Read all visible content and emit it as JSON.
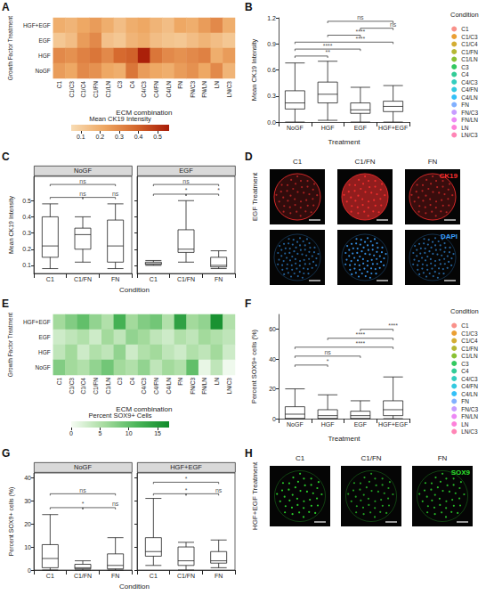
{
  "chart_data": [
    {
      "panel": "A",
      "type": "heatmap",
      "x_label": "ECM combination",
      "y_label": "Growth Factor Treatment",
      "columns": [
        "C1",
        "C1/C3",
        "C1/C4",
        "C1/FN",
        "C1/LN",
        "C3",
        "C4",
        "C4/C3",
        "C4/FN",
        "C4/LN",
        "FN",
        "FN/C3",
        "FN/LN",
        "LN",
        "LN/C3"
      ],
      "rows": [
        "HGF+EGF",
        "EGF",
        "HGF",
        "NoGF"
      ],
      "values": [
        [
          0.2,
          0.18,
          0.22,
          0.25,
          0.2,
          0.15,
          0.2,
          0.22,
          0.18,
          0.15,
          0.22,
          0.2,
          0.25,
          0.3,
          0.2
        ],
        [
          0.12,
          0.15,
          0.25,
          0.3,
          0.14,
          0.12,
          0.18,
          0.2,
          0.15,
          0.13,
          0.12,
          0.15,
          0.18,
          0.15,
          0.12
        ],
        [
          0.3,
          0.28,
          0.32,
          0.35,
          0.3,
          0.38,
          0.4,
          0.55,
          0.35,
          0.3,
          0.28,
          0.3,
          0.32,
          0.2,
          0.25
        ],
        [
          0.25,
          0.22,
          0.3,
          0.28,
          0.22,
          0.2,
          0.35,
          0.25,
          0.22,
          0.2,
          0.25,
          0.28,
          0.22,
          0.3,
          0.18
        ]
      ],
      "color_label": "Mean CK19 Intensity",
      "color_range": [
        0.05,
        0.56
      ],
      "color_ticks": [
        0.1,
        0.2,
        0.3,
        0.4,
        0.5
      ]
    },
    {
      "panel": "B",
      "type": "boxplot",
      "x_label": "Treatment",
      "y_label": "Mean CK19 Intensity",
      "categories": [
        "NoGF",
        "HGF",
        "EGF",
        "HGF+EGF"
      ],
      "boxes": [
        [
          0.0,
          0.15,
          0.22,
          0.36,
          0.68
        ],
        [
          0.02,
          0.22,
          0.32,
          0.46,
          0.7
        ],
        [
          0.0,
          0.1,
          0.14,
          0.22,
          0.4
        ],
        [
          0.0,
          0.12,
          0.18,
          0.24,
          0.42
        ]
      ],
      "ylim": [
        0,
        1.2
      ],
      "yticks": [
        {
          "value": 0,
          "label": "0.0"
        },
        0.3,
        0.6,
        0.9,
        1.2
      ],
      "grid": false,
      "comparisons": [
        {
          "from": "NoGF",
          "to": "HGF",
          "y": 0.76,
          "label": "**"
        },
        {
          "from": "NoGF",
          "to": "EGF",
          "y": 0.84,
          "label": "****"
        },
        {
          "from": "NoGF",
          "to": "HGF+EGF",
          "y": 0.92,
          "label": "****"
        },
        {
          "from": "HGF",
          "to": "EGF",
          "y": 1.0,
          "label": "****"
        },
        {
          "from": "EGF",
          "to": "HGF+EGF",
          "y": 1.08,
          "label": "ns"
        },
        {
          "from": "HGF",
          "to": "HGF+EGF",
          "y": 1.16,
          "label": "ns"
        }
      ],
      "legend": "right",
      "legend_title": "Condition",
      "series": [
        {
          "name": "C1",
          "color": "#F8766D"
        },
        {
          "name": "C1/C3",
          "color": "#E58700"
        },
        {
          "name": "C1/C4",
          "color": "#C99800"
        },
        {
          "name": "C1/FN",
          "color": "#A3A500"
        },
        {
          "name": "C1/LN",
          "color": "#6BB100"
        },
        {
          "name": "C3",
          "color": "#00BA38"
        },
        {
          "name": "C4",
          "color": "#00BF7D"
        },
        {
          "name": "C4/C3",
          "color": "#00C0AF"
        },
        {
          "name": "C4/FN",
          "color": "#00BCD8"
        },
        {
          "name": "C4/LN",
          "color": "#00B0F6"
        },
        {
          "name": "FN",
          "color": "#619CFF"
        },
        {
          "name": "FN/C3",
          "color": "#B983FF"
        },
        {
          "name": "FN/LN",
          "color": "#E76BF3"
        },
        {
          "name": "LN",
          "color": "#FD61D1"
        },
        {
          "name": "LN/C3",
          "color": "#FF67A4"
        }
      ]
    },
    {
      "panel": "C",
      "type": "boxplot",
      "x_label": "Condition",
      "y_label": "Mean CK19 Intensity",
      "ylim": [
        0.05,
        0.65
      ],
      "yticks": [
        0.1,
        0.2,
        0.3,
        0.4,
        0.5
      ],
      "grid": false,
      "facets": [
        {
          "title": "NoGF",
          "categories": [
            "C1",
            "C1/FN",
            "FN"
          ],
          "boxes": [
            [
              0.08,
              0.15,
              0.22,
              0.4,
              0.48
            ],
            [
              0.12,
              0.2,
              0.29,
              0.33,
              0.4
            ],
            [
              0.08,
              0.12,
              0.22,
              0.38,
              0.48
            ]
          ],
          "comparisons": [
            {
              "from": "C1",
              "to": "C1/FN",
              "y": 0.52,
              "label": "ns"
            },
            {
              "from": "C1/FN",
              "to": "FN",
              "y": 0.52,
              "label": "ns"
            },
            {
              "from": "C1",
              "to": "FN",
              "y": 0.6,
              "label": "ns"
            }
          ]
        },
        {
          "title": "EGF",
          "categories": [
            "C1",
            "C1/FN",
            "FN"
          ],
          "boxes": [
            [
              0.1,
              0.105,
              0.11,
              0.12,
              0.13
            ],
            [
              0.12,
              0.18,
              0.2,
              0.32,
              0.5
            ],
            [
              0.08,
              0.09,
              0.1,
              0.15,
              0.19
            ]
          ],
          "comparisons": [
            {
              "from": "C1",
              "to": "C1/FN",
              "y": 0.54,
              "label": "*"
            },
            {
              "from": "C1/FN",
              "to": "FN",
              "y": 0.54,
              "label": "*"
            },
            {
              "from": "C1",
              "to": "FN",
              "y": 0.6,
              "label": "ns"
            }
          ]
        }
      ]
    },
    {
      "panel": "E",
      "type": "heatmap",
      "x_label": "ECM combination",
      "y_label": "Growth Factor Treatment",
      "columns": [
        "C1",
        "C1/C3",
        "C1/C4",
        "C1/FN",
        "C1/LN",
        "C3",
        "C4",
        "C4/C3",
        "C4/FN",
        "C4/LN",
        "FN",
        "FN/C3",
        "FN/LN",
        "LN",
        "LN/C3"
      ],
      "rows": [
        "HGF+EGF",
        "EGF",
        "HGF",
        "NoGF"
      ],
      "values": [
        [
          6,
          8,
          10,
          7,
          5,
          12,
          6,
          8,
          9,
          5,
          14,
          6,
          7,
          16,
          5
        ],
        [
          3,
          4,
          5,
          3,
          6,
          4,
          7,
          6,
          4,
          3,
          5,
          4,
          6,
          5,
          4
        ],
        [
          4,
          6,
          3,
          5,
          4,
          7,
          3,
          5,
          6,
          4,
          3,
          5,
          4,
          6,
          3
        ],
        [
          8,
          6,
          5,
          7,
          9,
          6,
          5,
          7,
          4,
          6,
          5,
          10,
          1,
          4,
          0.5
        ]
      ],
      "color_label": "Percent SOX9+ Cells",
      "color_range": [
        0,
        17
      ],
      "color_ticks": [
        0,
        5,
        10,
        15
      ]
    },
    {
      "panel": "F",
      "type": "boxplot",
      "x_label": "Treatment",
      "y_label": "Percent SOX9+ cells (%)",
      "categories": [
        "NoGF",
        "HGF",
        "EGF",
        "HGF+EGF"
      ],
      "boxes": [
        [
          0,
          0,
          3,
          8,
          20
        ],
        [
          0,
          0,
          2,
          6,
          16
        ],
        [
          0,
          0,
          2,
          5,
          12
        ],
        [
          0,
          2,
          6,
          12,
          28
        ]
      ],
      "ylim": [
        0,
        70
      ],
      "yticks": [
        0,
        20,
        40,
        60
      ],
      "grid": false,
      "comparisons": [
        {
          "from": "NoGF",
          "to": "HGF",
          "y": 36,
          "label": "*"
        },
        {
          "from": "NoGF",
          "to": "EGF",
          "y": 42,
          "label": "ns"
        },
        {
          "from": "NoGF",
          "to": "HGF+EGF",
          "y": 48,
          "label": "****"
        },
        {
          "from": "HGF",
          "to": "HGF+EGF",
          "y": 54,
          "label": "****"
        },
        {
          "from": "EGF",
          "to": "HGF+EGF",
          "y": 60,
          "label": "****"
        }
      ],
      "legend": "right",
      "legend_title": "Condition",
      "series": [
        {
          "name": "C1",
          "color": "#F8766D"
        },
        {
          "name": "C1/C3",
          "color": "#E58700"
        },
        {
          "name": "C1/C4",
          "color": "#C99800"
        },
        {
          "name": "C1/FN",
          "color": "#A3A500"
        },
        {
          "name": "C1/LN",
          "color": "#6BB100"
        },
        {
          "name": "C3",
          "color": "#00BA38"
        },
        {
          "name": "C4",
          "color": "#00BF7D"
        },
        {
          "name": "C4/C3",
          "color": "#00C0AF"
        },
        {
          "name": "C4/FN",
          "color": "#00BCD8"
        },
        {
          "name": "C4/LN",
          "color": "#00B0F6"
        },
        {
          "name": "FN",
          "color": "#619CFF"
        },
        {
          "name": "FN/C3",
          "color": "#B983FF"
        },
        {
          "name": "FN/LN",
          "color": "#E76BF3"
        },
        {
          "name": "LN",
          "color": "#FD61D1"
        },
        {
          "name": "LN/C3",
          "color": "#FF67A4"
        }
      ]
    },
    {
      "panel": "G",
      "type": "boxplot",
      "x_label": "Condition",
      "y_label": "Percent SOX9+ cells (%)",
      "ylim": [
        0,
        42
      ],
      "yticks": [
        0,
        10,
        20,
        30,
        40
      ],
      "grid": false,
      "facets": [
        {
          "title": "NoGF",
          "categories": [
            "C1",
            "C1/FN",
            "FN"
          ],
          "boxes": [
            [
              0,
              1,
              5,
              11,
              24
            ],
            [
              0,
              0.5,
              1,
              2.5,
              4
            ],
            [
              0,
              0.5,
              2,
              7,
              14
            ]
          ],
          "comparisons": [
            {
              "from": "C1",
              "to": "C1/FN",
              "y": 27,
              "label": "*"
            },
            {
              "from": "C1/FN",
              "to": "FN",
              "y": 27,
              "label": "ns"
            },
            {
              "from": "C1",
              "to": "FN",
              "y": 33,
              "label": "ns"
            }
          ]
        },
        {
          "title": "HGF+EGF",
          "categories": [
            "C1",
            "C1/FN",
            "FN"
          ],
          "boxes": [
            [
              2,
              6,
              8,
              14,
              31
            ],
            [
              0,
              2,
              4,
              10,
              12
            ],
            [
              1,
              3,
              4,
              8,
              13
            ]
          ],
          "comparisons": [
            {
              "from": "C1",
              "to": "C1/FN",
              "y": 33,
              "label": "*"
            },
            {
              "from": "C1/FN",
              "to": "FN",
              "y": 33,
              "label": "ns"
            },
            {
              "from": "C1",
              "to": "FN",
              "y": 38,
              "label": "*"
            }
          ]
        }
      ]
    }
  ],
  "images": [
    {
      "panel": "D",
      "treatment": "EGF Treatment",
      "columns": [
        "C1",
        "C1/FN",
        "FN"
      ],
      "stains": [
        {
          "name": "CK19",
          "color": "#ff3030"
        },
        {
          "name": "DAPI",
          "color": "#3aa0ff"
        }
      ]
    },
    {
      "panel": "H",
      "treatment": "HGF+EGF Treatment",
      "columns": [
        "C1",
        "C1/FN",
        "FN"
      ],
      "stains": [
        {
          "name": "SOX9",
          "color": "#2ee02e"
        }
      ]
    }
  ]
}
